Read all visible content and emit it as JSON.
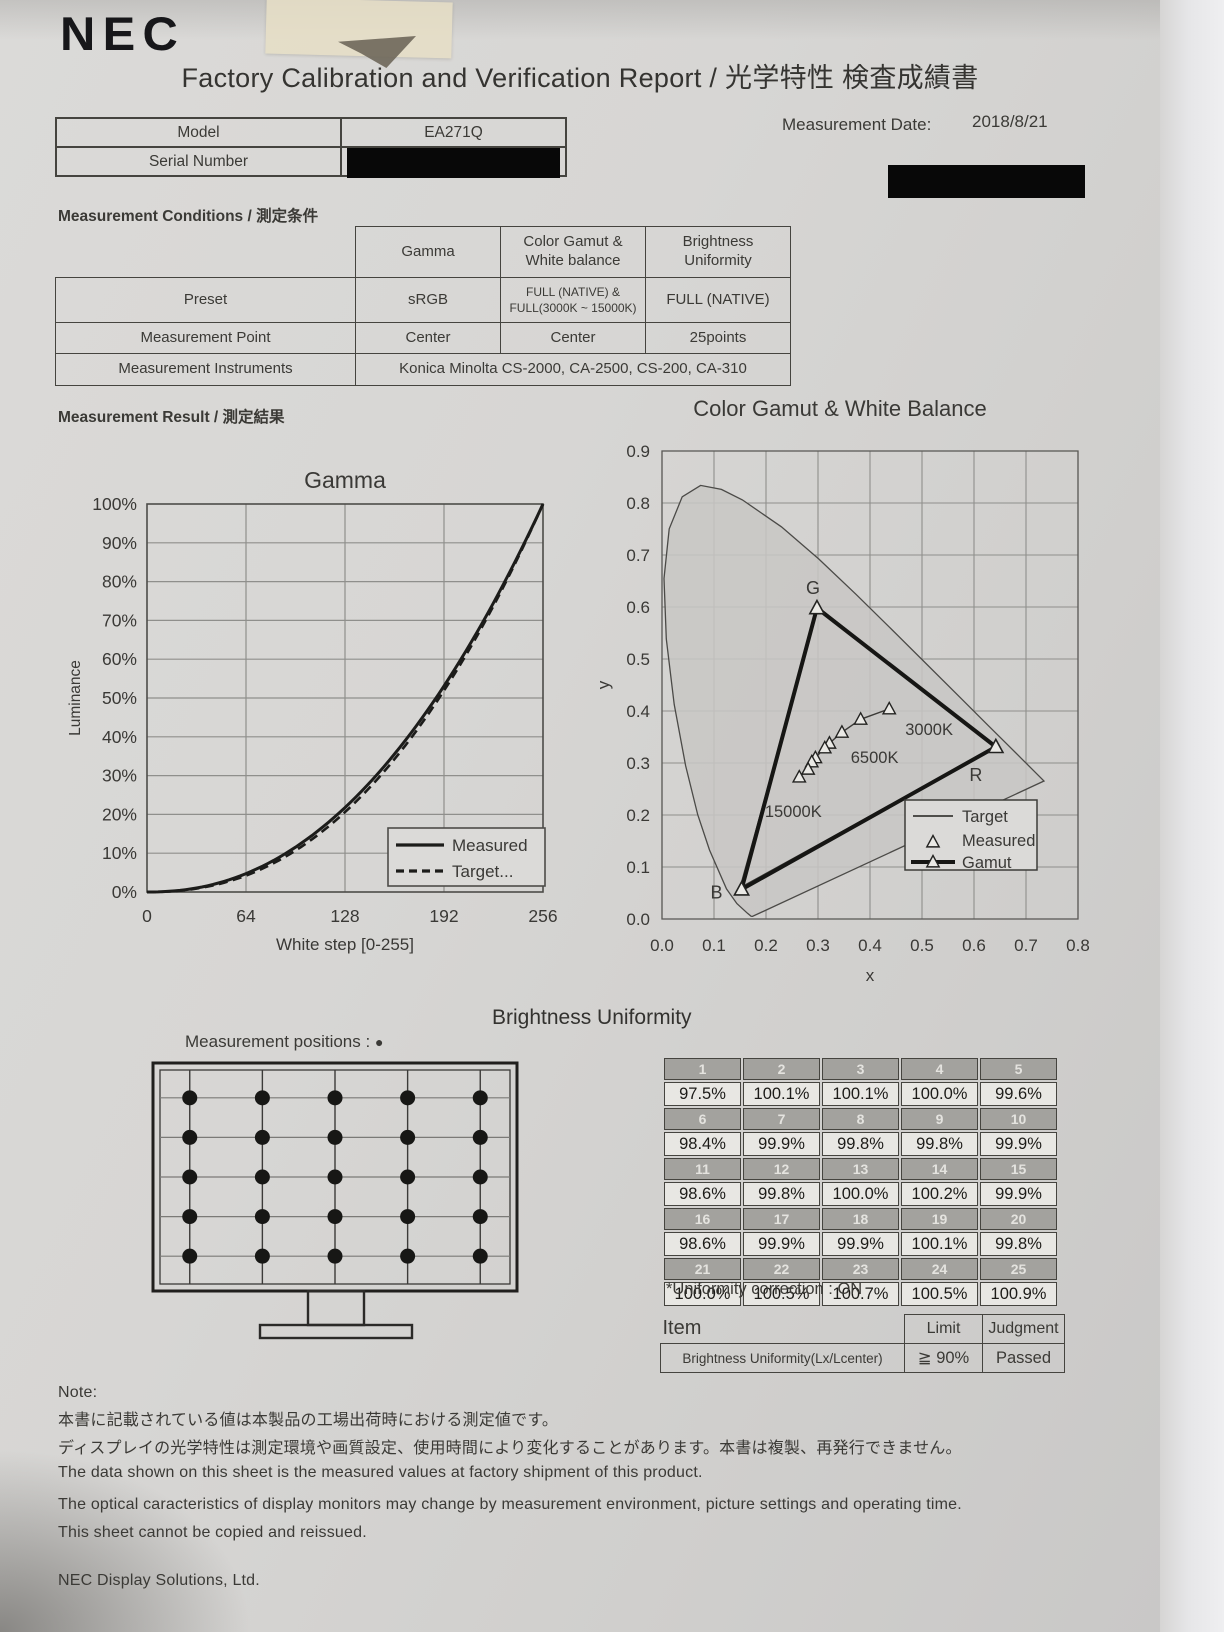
{
  "page": {
    "logo": "NEC",
    "title": "Factory Calibration and Verification Report / 光学特性 検査成績書",
    "footer_company": "NEC Display Solutions, Ltd."
  },
  "info": {
    "model_label": "Model",
    "model_value": "EA271Q",
    "serial_label": "Serial Number",
    "date_label": "Measurement Date:",
    "date_value": "2018/8/21"
  },
  "conditions": {
    "heading": "Measurement Conditions / 測定条件",
    "columns": [
      "Gamma",
      "Color Gamut &\nWhite balance",
      "Brightness\nUniformity"
    ],
    "rows": [
      {
        "label": "Preset",
        "cells": [
          "sRGB",
          "FULL (NATIVE) &\nFULL(3000K ~ 15000K)",
          "FULL (NATIVE)"
        ],
        "small": [
          false,
          true,
          false
        ]
      },
      {
        "label": "Measurement Point",
        "cells": [
          "Center",
          "Center",
          "25points"
        ],
        "small": [
          false,
          false,
          false
        ]
      }
    ],
    "instruments_label": "Measurement Instruments",
    "instruments_value": "Konica Minolta CS-2000, CA-2500, CS-200, CA-310"
  },
  "result_heading": "Measurement Result / 測定結果",
  "chart_data": [
    {
      "id": "gamma",
      "type": "line",
      "title": "Gamma",
      "xlabel": "White step [0-255]",
      "ylabel": "Luminance",
      "xlim": [
        0,
        256
      ],
      "ylim_percent": [
        0,
        100
      ],
      "x_ticks": [
        0,
        64,
        128,
        192,
        256
      ],
      "y_ticks_percent": [
        0,
        10,
        20,
        30,
        40,
        50,
        60,
        70,
        80,
        90,
        100
      ],
      "grid": true,
      "legend_position": "lower right",
      "series": [
        {
          "name": "Measured",
          "style": "solid",
          "gamma_exponent": 2.2,
          "x": [
            0,
            32,
            64,
            96,
            128,
            160,
            192,
            224,
            256
          ],
          "y_percent": [
            0,
            1.0,
            4.7,
            11.6,
            21.8,
            35.6,
            53.1,
            74.6,
            100
          ]
        },
        {
          "name": "Target...",
          "style": "dashed",
          "gamma_exponent": 2.28,
          "x": [
            0,
            32,
            64,
            96,
            128,
            160,
            192,
            224,
            256
          ],
          "y_percent": [
            0,
            0.9,
            4.2,
            10.7,
            20.6,
            34.2,
            51.9,
            73.8,
            100
          ]
        }
      ]
    },
    {
      "id": "gamut",
      "type": "scatter",
      "title": "Color Gamut & White Balance",
      "xlabel": "x",
      "ylabel": "y",
      "xlim": [
        0.0,
        0.8
      ],
      "ylim": [
        0.0,
        0.9
      ],
      "tick_step": 0.1,
      "vertex_labels": {
        "G": "G",
        "R": "R",
        "B": "B"
      },
      "target_triangle": {
        "R": [
          0.64,
          0.33
        ],
        "G": [
          0.3,
          0.6
        ],
        "B": [
          0.15,
          0.06
        ]
      },
      "measured_gamut_triangle": {
        "R": [
          0.642,
          0.331
        ],
        "G": [
          0.298,
          0.598
        ],
        "B": [
          0.153,
          0.057
        ]
      },
      "white_points": [
        {
          "x": 0.437,
          "y": 0.404,
          "label": "3000K"
        },
        {
          "x": 0.382,
          "y": 0.384
        },
        {
          "x": 0.346,
          "y": 0.359
        },
        {
          "x": 0.322,
          "y": 0.338
        },
        {
          "x": 0.313,
          "y": 0.329,
          "label": "6500K"
        },
        {
          "x": 0.295,
          "y": 0.31
        },
        {
          "x": 0.288,
          "y": 0.302
        },
        {
          "x": 0.281,
          "y": 0.288
        },
        {
          "x": 0.264,
          "y": 0.273,
          "label": "15000K"
        }
      ],
      "legend": [
        "Target",
        "Measured",
        "Gamut"
      ],
      "spectral_locus": [
        [
          0.1741,
          0.005
        ],
        [
          0.1714,
          0.0051
        ],
        [
          0.1644,
          0.0109
        ],
        [
          0.144,
          0.0297
        ],
        [
          0.1241,
          0.0578
        ],
        [
          0.0913,
          0.1327
        ],
        [
          0.0687,
          0.2007
        ],
        [
          0.0454,
          0.295
        ],
        [
          0.0235,
          0.4127
        ],
        [
          0.0082,
          0.5384
        ],
        [
          0.0039,
          0.6548
        ],
        [
          0.0139,
          0.7502
        ],
        [
          0.0389,
          0.812
        ],
        [
          0.0743,
          0.8338
        ],
        [
          0.1142,
          0.8262
        ],
        [
          0.1547,
          0.8059
        ],
        [
          0.2296,
          0.7543
        ],
        [
          0.3016,
          0.6923
        ],
        [
          0.3731,
          0.6245
        ],
        [
          0.4441,
          0.5547
        ],
        [
          0.5125,
          0.4866
        ],
        [
          0.5752,
          0.4242
        ],
        [
          0.627,
          0.3725
        ],
        [
          0.6658,
          0.334
        ],
        [
          0.6915,
          0.3083
        ],
        [
          0.719,
          0.2809
        ],
        [
          0.7347,
          0.2653
        ]
      ]
    }
  ],
  "uniformity": {
    "heading": "Brightness Uniformity",
    "positions_label": "Measurement positions :",
    "positions_marker": "●",
    "monitor": {
      "rows": 5,
      "cols": 5
    },
    "table": {
      "groups": [
        {
          "numbers": [
            "1",
            "2",
            "3",
            "4",
            "5"
          ],
          "values": [
            "97.5%",
            "100.1%",
            "100.1%",
            "100.0%",
            "99.6%"
          ]
        },
        {
          "numbers": [
            "6",
            "7",
            "8",
            "9",
            "10"
          ],
          "values": [
            "98.4%",
            "99.9%",
            "99.8%",
            "99.8%",
            "99.9%"
          ]
        },
        {
          "numbers": [
            "11",
            "12",
            "13",
            "14",
            "15"
          ],
          "values": [
            "98.6%",
            "99.8%",
            "100.0%",
            "100.2%",
            "99.9%"
          ]
        },
        {
          "numbers": [
            "16",
            "17",
            "18",
            "19",
            "20"
          ],
          "values": [
            "98.6%",
            "99.9%",
            "99.9%",
            "100.1%",
            "99.8%"
          ]
        },
        {
          "numbers": [
            "21",
            "22",
            "23",
            "24",
            "25"
          ],
          "values": [
            "100.0%",
            "100.5%",
            "100.7%",
            "100.5%",
            "100.9%"
          ]
        }
      ]
    },
    "correction_note": "*Uniformity correction : ON",
    "judgment": {
      "item_header": "Item",
      "limit_header": "Limit",
      "judgment_header": "Judgment",
      "item": "Brightness Uniformity(Lx/Lcenter)",
      "limit": "≧ 90%",
      "result": "Passed"
    }
  },
  "notes": {
    "label": "Note:",
    "jp1": "本書に記載されている値は本製品の工場出荷時における測定値です。",
    "jp2": "ディスプレイの光学特性は測定環境や画質設定、使用時間により変化することがあります。本書は複製、再発行できません。",
    "en1": "The data shown on this sheet is the measured values at factory shipment of this product.",
    "en2": "The optical caracteristics of display monitors may change by measurement environment, picture settings and operating time.",
    "en3": "This sheet cannot be copied and reissued."
  }
}
